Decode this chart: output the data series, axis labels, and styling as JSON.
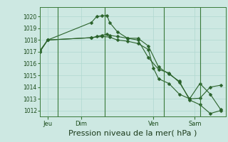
{
  "background_color": "#cde8e2",
  "grid_color": "#b0d8d0",
  "line_color": "#2a622a",
  "marker_color": "#2a622a",
  "title": "Pression niveau de la mer( hPa )",
  "title_fontsize": 8,
  "ylabel_ticks": [
    1012,
    1013,
    1014,
    1015,
    1016,
    1017,
    1018,
    1019,
    1020
  ],
  "ylim": [
    1011.5,
    1020.8
  ],
  "xlim": [
    0,
    36
  ],
  "xtick_positions": [
    1.5,
    8,
    22,
    30
  ],
  "xtick_labels": [
    "Jeu",
    "Dim",
    "Ven",
    "Sam"
  ],
  "vlines": [
    3.5,
    12.5,
    24,
    31
  ],
  "series1_x": [
    0,
    1.5,
    10,
    11,
    12,
    13,
    13.5,
    15,
    17,
    19,
    21,
    23,
    25,
    27,
    29,
    31,
    33,
    35
  ],
  "series1_y": [
    1017.0,
    1018.0,
    1019.5,
    1020.0,
    1020.05,
    1020.1,
    1019.5,
    1018.7,
    1018.15,
    1018.15,
    1017.5,
    1015.7,
    1015.1,
    1014.5,
    1012.9,
    1012.5,
    1011.75,
    1012.0
  ],
  "series2_x": [
    0,
    1.5,
    10,
    11,
    12,
    13,
    13.5,
    15,
    17,
    19,
    21,
    23,
    25,
    27,
    29,
    31,
    33,
    35
  ],
  "series2_y": [
    1017.0,
    1018.0,
    1018.2,
    1018.3,
    1018.4,
    1018.5,
    1018.4,
    1018.3,
    1018.15,
    1018.0,
    1016.5,
    1015.5,
    1015.2,
    1014.4,
    1013.0,
    1013.05,
    1014.0,
    1014.15
  ],
  "series3_x": [
    0,
    1.5,
    10,
    12,
    13.5,
    15,
    17,
    19,
    21,
    22,
    23,
    25,
    27,
    29,
    31,
    33,
    35
  ],
  "series3_y": [
    1017.1,
    1018.0,
    1018.2,
    1018.3,
    1018.25,
    1018.0,
    1017.9,
    1017.7,
    1017.2,
    1015.6,
    1014.7,
    1014.3,
    1013.4,
    1013.0,
    1014.3,
    1013.4,
    1012.1
  ]
}
